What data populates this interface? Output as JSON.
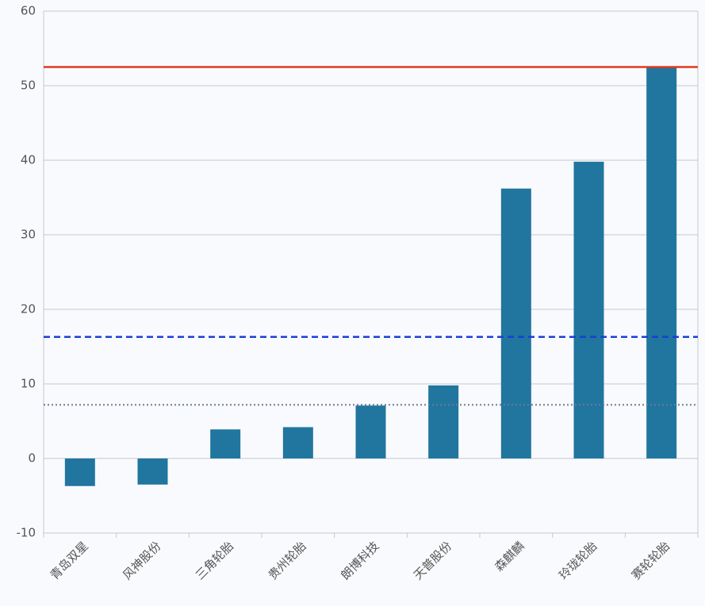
{
  "chart_data": {
    "type": "bar",
    "categories": [
      "青岛双星",
      "风神股份",
      "三角轮胎",
      "贵州轮胎",
      "朗博科技",
      "天普股份",
      "森麒麟",
      "玲珑轮胎",
      "赛轮轮胎"
    ],
    "values": [
      -3.7,
      -3.5,
      3.9,
      4.2,
      7.1,
      9.8,
      36.2,
      39.8,
      52.5
    ],
    "color": "#21769f",
    "ylim": [
      -10,
      60
    ],
    "yticks": [
      -10,
      0,
      10,
      20,
      30,
      40,
      50,
      60
    ],
    "grid": true,
    "reference_lines": [
      {
        "value": 52.5,
        "color": "#e0391f",
        "style": "solid"
      },
      {
        "value": 16.3,
        "color": "#1a3fd6",
        "style": "dashed"
      },
      {
        "value": 7.2,
        "color": "#6c7a90",
        "style": "dotted"
      }
    ]
  }
}
